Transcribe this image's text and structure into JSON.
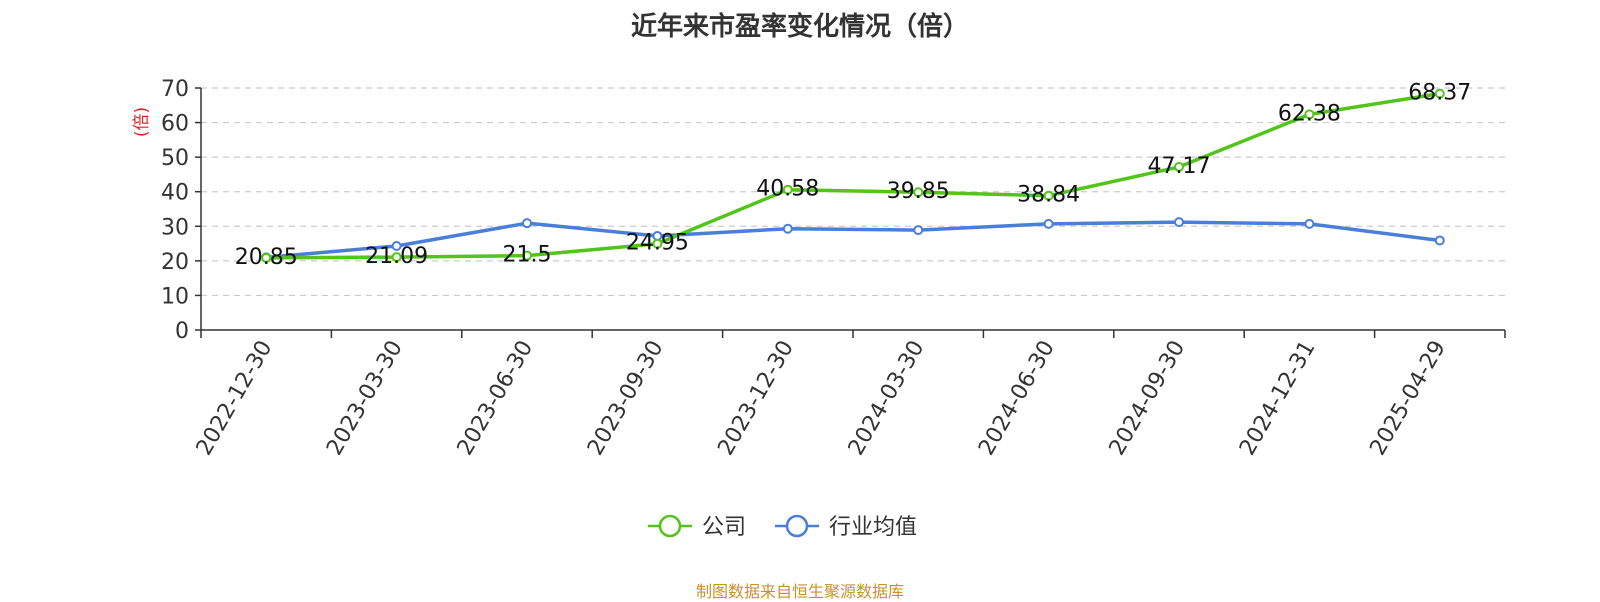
{
  "title": "近年来市盈率变化情况（倍）",
  "source": "制图数据来自恒生聚源数据库",
  "chart_data": {
    "type": "line",
    "title": "近年来市盈率变化情况（倍）",
    "ylabel": "(倍)",
    "xlabel": "",
    "ylim": [
      0,
      70
    ],
    "yticks": [
      0,
      10,
      20,
      30,
      40,
      50,
      60,
      70
    ],
    "grid": true,
    "legend_position": "bottom-center",
    "categories": [
      "2022-12-30",
      "2023-03-30",
      "2023-06-30",
      "2023-09-30",
      "2023-12-30",
      "2024-03-30",
      "2024-06-30",
      "2024-09-30",
      "2024-12-31",
      "2025-04-29"
    ],
    "series": [
      {
        "name": "公司",
        "color": "#52c41a",
        "values": [
          20.85,
          21.09,
          21.5,
          24.95,
          40.58,
          39.85,
          38.84,
          47.17,
          62.38,
          68.37
        ],
        "labels": [
          "20.85",
          "21.09",
          "21.5",
          "24.95",
          "40.58",
          "39.85",
          "38.84",
          "47.17",
          "62.38",
          "68.37"
        ]
      },
      {
        "name": "行业均值",
        "color": "#4a7fd9",
        "values": [
          21.0,
          24.3,
          30.9,
          27.2,
          29.3,
          28.9,
          30.7,
          31.2,
          30.7,
          25.9
        ]
      }
    ],
    "ylabel_color": "#e02020"
  }
}
